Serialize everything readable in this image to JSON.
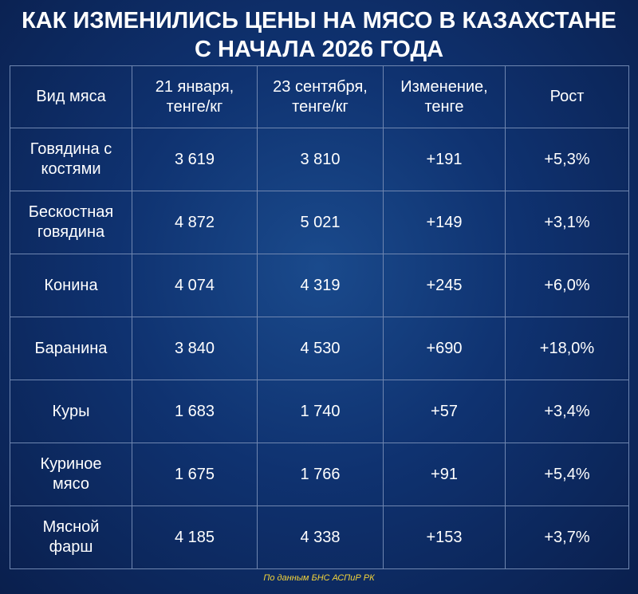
{
  "header": {
    "title_lines": [
      "КАК ИЗМЕНИЛИСЬ ЦЕНЫ НА МЯСО В КАЗАХСТАНЕ",
      "С НАЧАЛА 2026 ГОДА"
    ]
  },
  "table": {
    "columns": [
      "Вид мяса",
      "21 января, тенге/кг",
      "23 сентября, тенге/кг",
      "Изменение, тенге",
      "Рост"
    ],
    "rows": [
      [
        "Говядина с костями",
        "3 619",
        "3 810",
        "+191",
        "+5,3%"
      ],
      [
        "Бескостная говядина",
        "4 872",
        "5 021",
        "+149",
        "+3,1%"
      ],
      [
        "Конина",
        "4 074",
        "4 319",
        "+245",
        "+6,0%"
      ],
      [
        "Баранина",
        "3 840",
        "4 530",
        "+690",
        "+18,0%"
      ],
      [
        "Куры",
        "1 683",
        "1 740",
        "+57",
        "+3,4%"
      ],
      [
        "Куриное мясо",
        "1 675",
        "1 766",
        "+91",
        "+5,4%"
      ],
      [
        "Мясной фарш",
        "4 185",
        "4 338",
        "+153",
        "+3,7%"
      ]
    ]
  },
  "footer": {
    "source": "По данным БНС АСПиР РК"
  }
}
